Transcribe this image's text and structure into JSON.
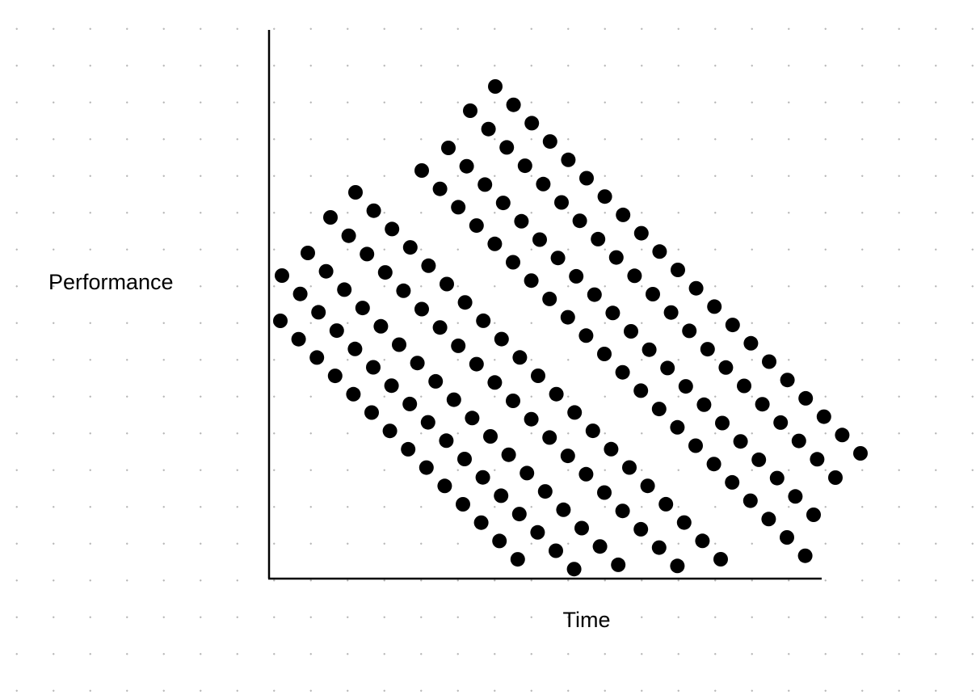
{
  "labels": {
    "y_axis": "Performance",
    "x_axis": "Time"
  }
}
